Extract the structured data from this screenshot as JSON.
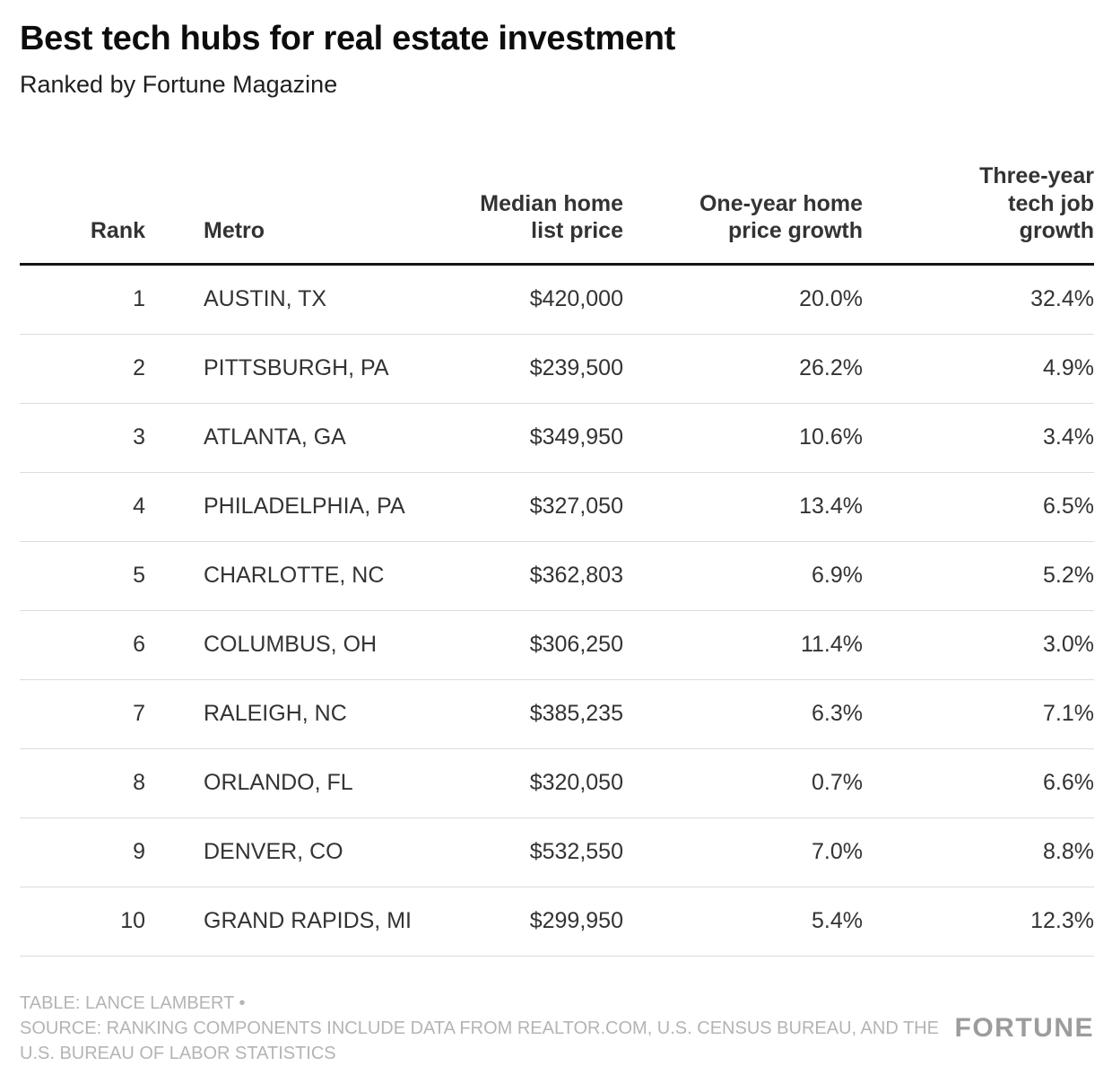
{
  "chart_data": {
    "type": "table",
    "title": "Best tech hubs for real estate investment",
    "subtitle": "Ranked by Fortune Magazine",
    "columns": [
      {
        "key": "rank",
        "label": "Rank"
      },
      {
        "key": "metro",
        "label": "Metro"
      },
      {
        "key": "median_home_list_price",
        "label": "Median home list price"
      },
      {
        "key": "one_year_home_price_growth",
        "label": "One-year home price growth"
      },
      {
        "key": "three_year_tech_job_growth",
        "label": "Three-year tech job growth"
      }
    ],
    "rows": [
      {
        "rank": "1",
        "metro": "AUSTIN, TX",
        "median_home_list_price": "$420,000",
        "one_year_home_price_growth": "20.0%",
        "three_year_tech_job_growth": "32.4%"
      },
      {
        "rank": "2",
        "metro": "PITTSBURGH, PA",
        "median_home_list_price": "$239,500",
        "one_year_home_price_growth": "26.2%",
        "three_year_tech_job_growth": "4.9%"
      },
      {
        "rank": "3",
        "metro": "ATLANTA, GA",
        "median_home_list_price": "$349,950",
        "one_year_home_price_growth": "10.6%",
        "three_year_tech_job_growth": "3.4%"
      },
      {
        "rank": "4",
        "metro": "PHILADELPHIA, PA",
        "median_home_list_price": "$327,050",
        "one_year_home_price_growth": "13.4%",
        "three_year_tech_job_growth": "6.5%"
      },
      {
        "rank": "5",
        "metro": "CHARLOTTE, NC",
        "median_home_list_price": "$362,803",
        "one_year_home_price_growth": "6.9%",
        "three_year_tech_job_growth": "5.2%"
      },
      {
        "rank": "6",
        "metro": "COLUMBUS, OH",
        "median_home_list_price": "$306,250",
        "one_year_home_price_growth": "11.4%",
        "three_year_tech_job_growth": "3.0%"
      },
      {
        "rank": "7",
        "metro": "RALEIGH, NC",
        "median_home_list_price": "$385,235",
        "one_year_home_price_growth": "6.3%",
        "three_year_tech_job_growth": "7.1%"
      },
      {
        "rank": "8",
        "metro": "ORLANDO, FL",
        "median_home_list_price": "$320,050",
        "one_year_home_price_growth": "0.7%",
        "three_year_tech_job_growth": "6.6%"
      },
      {
        "rank": "9",
        "metro": "DENVER, CO",
        "median_home_list_price": "$532,550",
        "one_year_home_price_growth": "7.0%",
        "three_year_tech_job_growth": "8.8%"
      },
      {
        "rank": "10",
        "metro": "GRAND RAPIDS, MI",
        "median_home_list_price": "$299,950",
        "one_year_home_price_growth": "5.4%",
        "three_year_tech_job_growth": "12.3%"
      }
    ]
  },
  "footer": {
    "credit": "TABLE: LANCE LAMBERT •",
    "source": "SOURCE: RANKING COMPONENTS INCLUDE DATA FROM REALTOR.COM, U.S. CENSUS BUREAU, AND THE U.S. BUREAU OF LABOR STATISTICS",
    "logo": "FORTUNE"
  },
  "colors": {
    "title": "#0d0d0d",
    "body_text": "#333333",
    "header_rule": "#141414",
    "row_divider": "#dcdcdc",
    "footer_text": "#b4b4b4",
    "logo": "#9c9c9c",
    "background": "#ffffff"
  }
}
